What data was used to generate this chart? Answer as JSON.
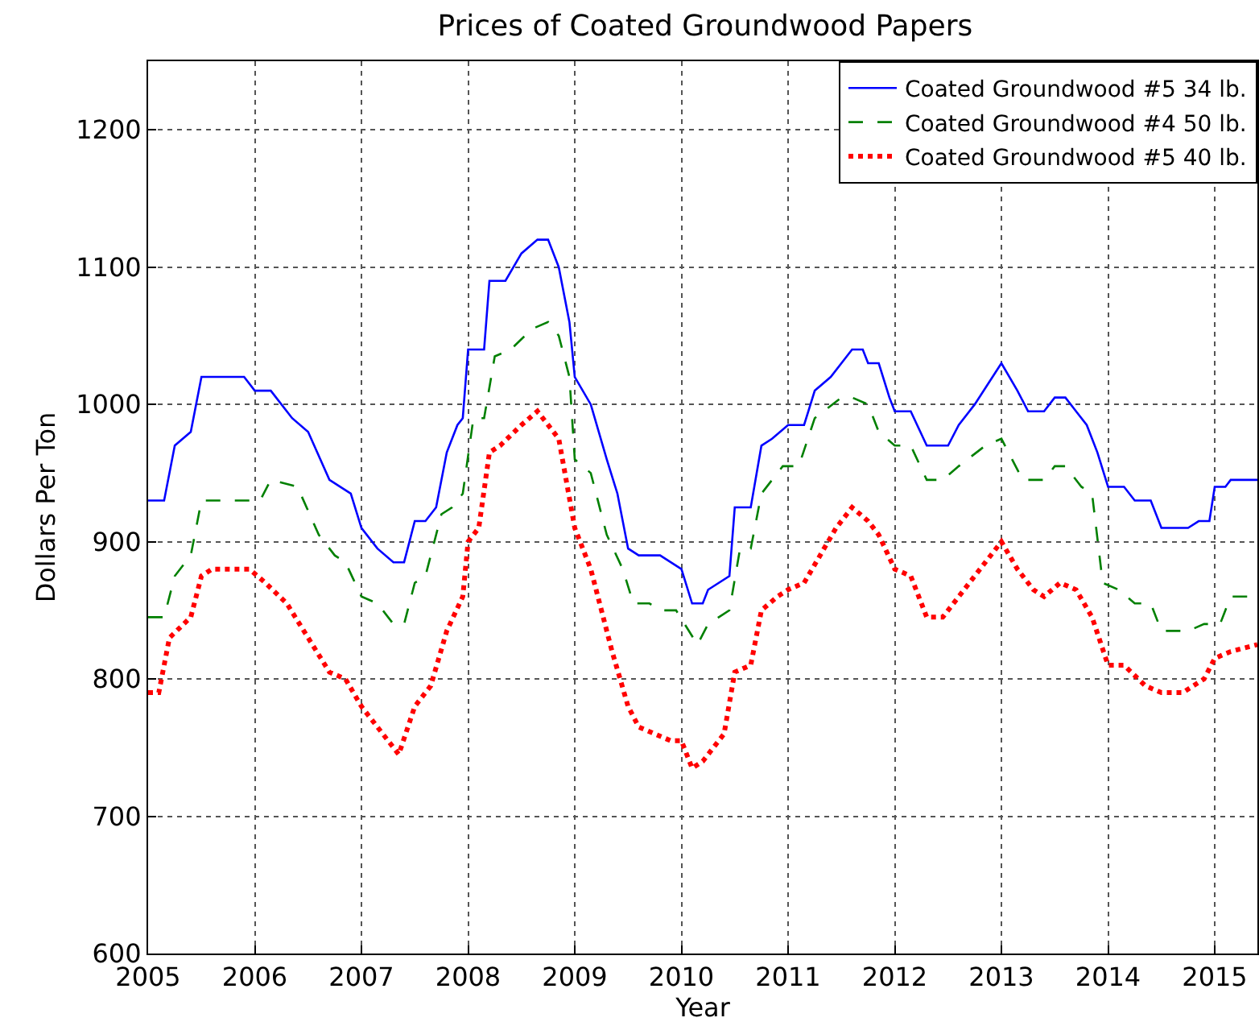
{
  "chart_data": {
    "type": "line",
    "title": "Prices of Coated Groundwood Papers",
    "xlabel": "Year",
    "ylabel": "Dollars Per Ton",
    "xlim": [
      2005,
      2015.4
    ],
    "xticks": [
      2005,
      2006,
      2007,
      2008,
      2009,
      2010,
      2011,
      2012,
      2013,
      2014,
      2015
    ],
    "ylim": [
      600,
      1250
    ],
    "yticks": [
      600,
      700,
      800,
      900,
      1000,
      1100,
      1200
    ],
    "grid": true,
    "legend": "top right",
    "series": [
      {
        "name": "Coated Groundwood #5 34 lb.",
        "color": "#0000ff",
        "line_style": "solid",
        "x": [
          2005.0,
          2005.15,
          2005.25,
          2005.4,
          2005.5,
          2005.9,
          2006.0,
          2006.15,
          2006.35,
          2006.5,
          2006.7,
          2006.8,
          2006.9,
          2007.0,
          2007.15,
          2007.3,
          2007.4,
          2007.5,
          2007.6,
          2007.7,
          2007.8,
          2007.9,
          2007.95,
          2008.0,
          2008.15,
          2008.2,
          2008.35,
          2008.5,
          2008.65,
          2008.75,
          2008.85,
          2008.95,
          2009.0,
          2009.15,
          2009.3,
          2009.4,
          2009.5,
          2009.6,
          2009.8,
          2009.9,
          2010.0,
          2010.1,
          2010.2,
          2010.25,
          2010.45,
          2010.5,
          2010.65,
          2010.75,
          2010.85,
          2011.0,
          2011.15,
          2011.25,
          2011.4,
          2011.55,
          2011.6,
          2011.7,
          2011.75,
          2011.85,
          2011.95,
          2012.0,
          2012.15,
          2012.3,
          2012.5,
          2012.6,
          2012.75,
          2013.0,
          2013.15,
          2013.25,
          2013.4,
          2013.5,
          2013.6,
          2013.7,
          2013.8,
          2013.9,
          2014.0,
          2014.15,
          2014.25,
          2014.4,
          2014.5,
          2014.75,
          2014.85,
          2014.95,
          2015.0,
          2015.1,
          2015.15,
          2015.4
        ],
        "values": [
          930,
          930,
          970,
          980,
          1020,
          1020,
          1010,
          1010,
          990,
          980,
          945,
          940,
          935,
          910,
          895,
          885,
          885,
          915,
          915,
          925,
          965,
          985,
          990,
          1040,
          1040,
          1090,
          1090,
          1110,
          1120,
          1120,
          1100,
          1060,
          1020,
          1000,
          960,
          935,
          895,
          890,
          890,
          885,
          880,
          855,
          855,
          865,
          875,
          925,
          925,
          970,
          975,
          985,
          985,
          1010,
          1020,
          1035,
          1040,
          1040,
          1030,
          1030,
          1005,
          995,
          995,
          970,
          970,
          985,
          1000,
          1030,
          1010,
          995,
          995,
          1005,
          1005,
          995,
          985,
          965,
          940,
          940,
          930,
          930,
          910,
          910,
          915,
          915,
          940,
          940,
          945,
          945
        ]
      },
      {
        "name": "Coated Groundwood #4 50 lb.",
        "color": "#008000",
        "line_style": "dashed",
        "x": [
          2005.0,
          2005.15,
          2005.25,
          2005.4,
          2005.5,
          2005.95,
          2006.05,
          2006.15,
          2006.4,
          2006.6,
          2006.75,
          2006.85,
          2007.0,
          2007.15,
          2007.3,
          2007.4,
          2007.5,
          2007.6,
          2007.75,
          2007.85,
          2007.95,
          2008.05,
          2008.15,
          2008.25,
          2008.4,
          2008.6,
          2008.75,
          2008.85,
          2008.95,
          2009.0,
          2009.15,
          2009.3,
          2009.45,
          2009.55,
          2009.7,
          2009.8,
          2009.95,
          2010.15,
          2010.25,
          2010.45,
          2010.55,
          2010.65,
          2010.75,
          2010.95,
          2011.1,
          2011.25,
          2011.5,
          2011.6,
          2011.75,
          2011.85,
          2012.0,
          2012.15,
          2012.3,
          2012.45,
          2012.6,
          2012.85,
          2013.0,
          2013.2,
          2013.4,
          2013.5,
          2013.6,
          2013.75,
          2013.85,
          2013.95,
          2014.1,
          2014.25,
          2014.4,
          2014.5,
          2014.75,
          2014.9,
          2015.05,
          2015.15,
          2015.4
        ],
        "values": [
          845,
          845,
          875,
          890,
          930,
          930,
          930,
          945,
          940,
          905,
          890,
          885,
          860,
          855,
          840,
          840,
          870,
          875,
          920,
          925,
          935,
          990,
          990,
          1035,
          1040,
          1055,
          1060,
          1050,
          1020,
          960,
          950,
          905,
          880,
          855,
          855,
          850,
          850,
          825,
          840,
          850,
          895,
          895,
          935,
          955,
          955,
          990,
          1005,
          1005,
          1000,
          980,
          970,
          970,
          945,
          945,
          955,
          970,
          975,
          945,
          945,
          955,
          955,
          940,
          935,
          870,
          865,
          855,
          855,
          835,
          835,
          840,
          840,
          860,
          860
        ]
      },
      {
        "name": "Coated Groundwood #5 40 lb.",
        "color": "#ff0000",
        "line_style": "dotted",
        "x": [
          2005.0,
          2005.1,
          2005.2,
          2005.4,
          2005.5,
          2005.6,
          2005.95,
          2006.1,
          2006.3,
          2006.5,
          2006.7,
          2006.85,
          2007.0,
          2007.2,
          2007.35,
          2007.5,
          2007.65,
          2007.8,
          2007.95,
          2008.0,
          2008.1,
          2008.2,
          2008.3,
          2008.5,
          2008.65,
          2008.85,
          2009.0,
          2009.15,
          2009.35,
          2009.5,
          2009.6,
          2009.75,
          2009.9,
          2010.0,
          2010.1,
          2010.2,
          2010.4,
          2010.5,
          2010.65,
          2010.75,
          2010.9,
          2011.0,
          2011.15,
          2011.3,
          2011.45,
          2011.6,
          2011.75,
          2011.85,
          2012.0,
          2012.15,
          2012.3,
          2012.45,
          2012.6,
          2012.85,
          2013.0,
          2013.15,
          2013.3,
          2013.4,
          2013.55,
          2013.7,
          2013.85,
          2014.0,
          2014.15,
          2014.35,
          2014.5,
          2014.7,
          2014.9,
          2015.0,
          2015.15,
          2015.4
        ],
        "values": [
          790,
          790,
          830,
          845,
          875,
          880,
          880,
          870,
          855,
          830,
          805,
          800,
          780,
          760,
          745,
          780,
          795,
          835,
          860,
          900,
          910,
          965,
          970,
          985,
          995,
          975,
          910,
          880,
          820,
          780,
          765,
          760,
          755,
          755,
          735,
          740,
          760,
          805,
          810,
          850,
          860,
          865,
          870,
          890,
          910,
          925,
          915,
          905,
          880,
          875,
          845,
          845,
          860,
          885,
          900,
          880,
          865,
          860,
          870,
          865,
          845,
          810,
          810,
          795,
          790,
          790,
          800,
          815,
          820,
          825
        ]
      }
    ]
  }
}
